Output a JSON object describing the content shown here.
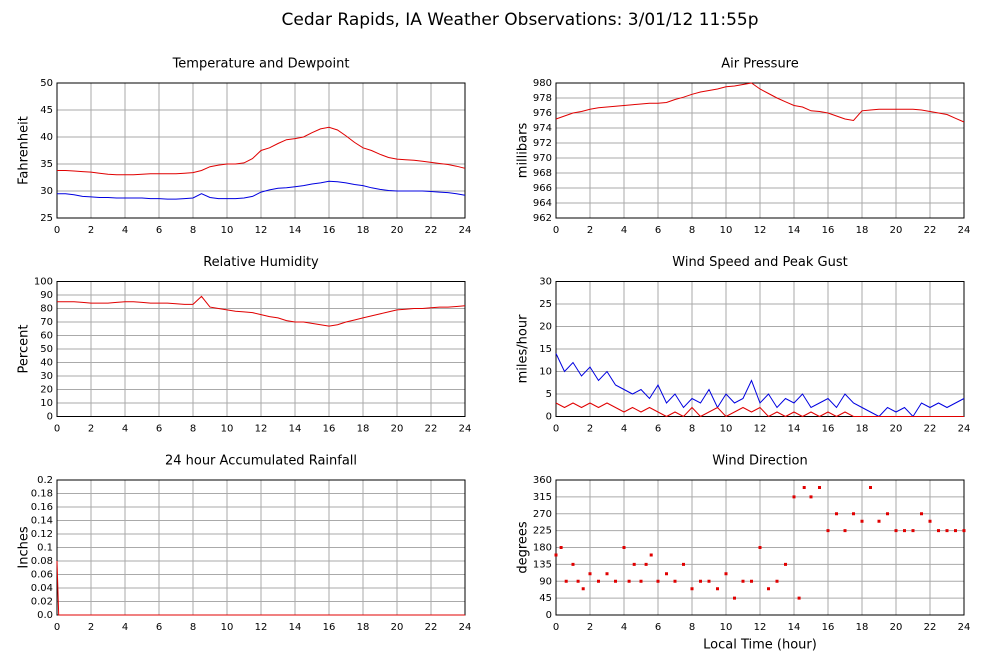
{
  "title": "Cedar Rapids, IA Weather Observations: 3/01/12 11:55p",
  "xlabel": "Local Time (hour)",
  "chart_data": [
    {
      "type": "line",
      "title": "Temperature and Dewpoint",
      "ylabel": "Fahrenheit",
      "x": [
        0,
        0.5,
        1,
        1.5,
        2,
        2.5,
        3,
        3.5,
        4,
        4.5,
        5,
        5.5,
        6,
        6.5,
        7,
        7.5,
        8,
        8.5,
        9,
        9.5,
        10,
        10.5,
        11,
        11.5,
        12,
        12.5,
        13,
        13.5,
        14,
        14.5,
        15,
        15.5,
        16,
        16.5,
        17,
        17.5,
        18,
        18.5,
        19,
        19.5,
        20,
        20.5,
        21,
        21.5,
        22,
        22.5,
        23,
        23.5,
        24
      ],
      "series": [
        {
          "color": "#e00000",
          "values": [
            33.8,
            33.8,
            33.7,
            33.6,
            33.5,
            33.3,
            33.1,
            33,
            33,
            33,
            33.1,
            33.2,
            33.2,
            33.2,
            33.2,
            33.3,
            33.4,
            33.8,
            34.5,
            34.8,
            35,
            35,
            35.2,
            36,
            37.5,
            38,
            38.8,
            39.5,
            39.7,
            40,
            40.8,
            41.5,
            41.8,
            41.3,
            40.2,
            39,
            38,
            37.5,
            36.8,
            36.2,
            35.9,
            35.8,
            35.7,
            35.5,
            35.3,
            35.1,
            34.9,
            34.6,
            34.2
          ]
        },
        {
          "color": "#0000e0",
          "values": [
            29.5,
            29.5,
            29.3,
            29,
            28.9,
            28.8,
            28.8,
            28.7,
            28.7,
            28.7,
            28.7,
            28.6,
            28.6,
            28.5,
            28.5,
            28.6,
            28.7,
            29.5,
            28.8,
            28.6,
            28.6,
            28.6,
            28.7,
            29,
            29.8,
            30.2,
            30.5,
            30.6,
            30.8,
            31,
            31.3,
            31.5,
            31.8,
            31.7,
            31.5,
            31.2,
            31,
            30.6,
            30.3,
            30.1,
            30,
            30,
            30,
            30,
            29.9,
            29.8,
            29.7,
            29.5,
            29.2
          ]
        }
      ],
      "xlim": [
        0,
        24
      ],
      "xticks": [
        0,
        2,
        4,
        6,
        8,
        10,
        12,
        14,
        16,
        18,
        20,
        22,
        24
      ],
      "ylim": [
        25,
        50
      ],
      "yticks": [
        25,
        30,
        35,
        40,
        45,
        50
      ],
      "grid": true
    },
    {
      "type": "line",
      "title": "Air Pressure",
      "ylabel": "millibars",
      "x": [
        0,
        0.5,
        1,
        1.5,
        2,
        2.5,
        3,
        3.5,
        4,
        4.5,
        5,
        5.5,
        6,
        6.5,
        7,
        7.5,
        8,
        8.5,
        9,
        9.5,
        10,
        10.5,
        11,
        11.5,
        12,
        12.5,
        13,
        13.5,
        14,
        14.5,
        15,
        15.5,
        16,
        16.5,
        17,
        17.5,
        18,
        18.5,
        19,
        19.5,
        20,
        20.5,
        21,
        21.5,
        22,
        22.5,
        23,
        23.5,
        24
      ],
      "series": [
        {
          "color": "#e00000",
          "values": [
            975.2,
            975.6,
            976,
            976.2,
            976.5,
            976.7,
            976.8,
            976.9,
            977,
            977.1,
            977.2,
            977.3,
            977.3,
            977.4,
            977.8,
            978.1,
            978.5,
            978.8,
            979,
            979.2,
            979.5,
            979.6,
            979.8,
            980,
            979.2,
            978.6,
            978,
            977.5,
            977,
            976.8,
            976.3,
            976.2,
            976,
            975.6,
            975.2,
            975,
            976.3,
            976.4,
            976.5,
            976.5,
            976.5,
            976.5,
            976.5,
            976.4,
            976.2,
            976,
            975.8,
            975.3,
            974.8
          ]
        }
      ],
      "xlim": [
        0,
        24
      ],
      "xticks": [
        0,
        2,
        4,
        6,
        8,
        10,
        12,
        14,
        16,
        18,
        20,
        22,
        24
      ],
      "ylim": [
        962,
        980
      ],
      "yticks": [
        962,
        964,
        966,
        968,
        970,
        972,
        974,
        976,
        978,
        980
      ],
      "grid": true
    },
    {
      "type": "line",
      "title": "Relative Humidity",
      "ylabel": "Percent",
      "x": [
        0,
        0.5,
        1,
        1.5,
        2,
        2.5,
        3,
        3.5,
        4,
        4.5,
        5,
        5.5,
        6,
        6.5,
        7,
        7.5,
        8,
        8.5,
        9,
        9.5,
        10,
        10.5,
        11,
        11.5,
        12,
        12.5,
        13,
        13.5,
        14,
        14.5,
        15,
        15.5,
        16,
        16.5,
        17,
        17.5,
        18,
        18.5,
        19,
        19.5,
        20,
        20.5,
        21,
        21.5,
        22,
        22.5,
        23,
        23.5,
        24
      ],
      "series": [
        {
          "color": "#e00000",
          "values": [
            85,
            85,
            85,
            84.5,
            84,
            84,
            84,
            84.5,
            85,
            85,
            84.5,
            84,
            84,
            84,
            83.5,
            83,
            83,
            89,
            81,
            80,
            79,
            78,
            77.5,
            77,
            75.5,
            74,
            73,
            71,
            70,
            70,
            69,
            68,
            67,
            68,
            70,
            71.5,
            73,
            74.5,
            76,
            77.5,
            79,
            79.5,
            80,
            80,
            80.5,
            81,
            81,
            81.5,
            82
          ]
        }
      ],
      "xlim": [
        0,
        24
      ],
      "xticks": [
        0,
        2,
        4,
        6,
        8,
        10,
        12,
        14,
        16,
        18,
        20,
        22,
        24
      ],
      "ylim": [
        0,
        100
      ],
      "yticks": [
        0,
        10,
        20,
        30,
        40,
        50,
        60,
        70,
        80,
        90,
        100
      ],
      "grid": true
    },
    {
      "type": "line",
      "title": "Wind Speed and Peak Gust",
      "ylabel": "miles/hour",
      "x": [
        0,
        0.5,
        1,
        1.5,
        2,
        2.5,
        3,
        3.5,
        4,
        4.5,
        5,
        5.5,
        6,
        6.5,
        7,
        7.5,
        8,
        8.5,
        9,
        9.5,
        10,
        10.5,
        11,
        11.5,
        12,
        12.5,
        13,
        13.5,
        14,
        14.5,
        15,
        15.5,
        16,
        16.5,
        17,
        17.5,
        18,
        18.5,
        19,
        19.5,
        20,
        20.5,
        21,
        21.5,
        22,
        22.5,
        23,
        23.5,
        24
      ],
      "series": [
        {
          "color": "#0000e0",
          "values": [
            14,
            10,
            12,
            9,
            11,
            8,
            10,
            7,
            6,
            5,
            6,
            4,
            7,
            3,
            5,
            2,
            4,
            3,
            6,
            2,
            5,
            3,
            4,
            8,
            3,
            5,
            2,
            4,
            3,
            5,
            2,
            3,
            4,
            2,
            5,
            3,
            2,
            1,
            0,
            2,
            1,
            2,
            0,
            3,
            2,
            3,
            2,
            3,
            4
          ]
        },
        {
          "color": "#e00000",
          "values": [
            3,
            2,
            3,
            2,
            3,
            2,
            3,
            2,
            1,
            2,
            1,
            2,
            1,
            0,
            1,
            0,
            2,
            0,
            1,
            2,
            0,
            1,
            2,
            1,
            2,
            0,
            1,
            0,
            1,
            0,
            1,
            0,
            1,
            0,
            1,
            0,
            0,
            0,
            0,
            0,
            0,
            0,
            0,
            0,
            0,
            0,
            0,
            0,
            0
          ]
        }
      ],
      "xlim": [
        0,
        24
      ],
      "xticks": [
        0,
        2,
        4,
        6,
        8,
        10,
        12,
        14,
        16,
        18,
        20,
        22,
        24
      ],
      "ylim": [
        0,
        30
      ],
      "yticks": [
        0,
        5,
        10,
        15,
        20,
        25,
        30
      ],
      "grid": true
    },
    {
      "type": "line",
      "title": "24 hour Accumulated Rainfall",
      "ylabel": "Inches",
      "x": [
        0,
        0.1,
        24
      ],
      "series": [
        {
          "color": "#e00000",
          "values": [
            0.08,
            0,
            0
          ]
        }
      ],
      "xlim": [
        0,
        24
      ],
      "xticks": [
        0,
        2,
        4,
        6,
        8,
        10,
        12,
        14,
        16,
        18,
        20,
        22,
        24
      ],
      "ylim": [
        0,
        0.2
      ],
      "yticks": [
        {
          "value": 0,
          "label": "0.0"
        },
        0.02,
        0.04,
        0.06,
        0.08,
        0.1,
        0.12,
        0.14,
        0.16,
        0.18,
        0.2
      ],
      "grid": true
    },
    {
      "type": "scatter",
      "title": "Wind Direction",
      "ylabel": "degrees",
      "x": [
        0,
        0.3,
        0.6,
        1,
        1.3,
        1.6,
        2,
        2.5,
        3,
        3.5,
        4,
        4.3,
        4.6,
        5,
        5.3,
        5.6,
        6,
        6.5,
        7,
        7.5,
        8,
        8.5,
        9,
        9.5,
        10,
        10.5,
        11,
        11.5,
        12,
        12.5,
        13,
        13.5,
        14,
        14.3,
        14.6,
        15,
        15.5,
        16,
        16.5,
        17,
        17.5,
        18,
        18.5,
        19,
        19.5,
        20,
        20.5,
        21,
        21.5,
        22,
        22.5,
        23,
        23.5,
        24
      ],
      "series": [
        {
          "color": "#e00000",
          "values": [
            160,
            180,
            90,
            135,
            90,
            70,
            110,
            90,
            110,
            90,
            180,
            90,
            135,
            90,
            135,
            160,
            90,
            110,
            90,
            135,
            70,
            90,
            90,
            70,
            110,
            45,
            90,
            90,
            180,
            70,
            90,
            135,
            315,
            45,
            340,
            315,
            340,
            225,
            270,
            225,
            270,
            250,
            340,
            250,
            270,
            225,
            225,
            225,
            270,
            250,
            225,
            225,
            225,
            225
          ]
        }
      ],
      "xlim": [
        0,
        24
      ],
      "xticks": [
        0,
        2,
        4,
        6,
        8,
        10,
        12,
        14,
        16,
        18,
        20,
        22,
        24
      ],
      "ylim": [
        0,
        360
      ],
      "yticks": [
        0,
        45,
        90,
        135,
        180,
        225,
        270,
        315,
        360
      ],
      "grid": true
    }
  ]
}
